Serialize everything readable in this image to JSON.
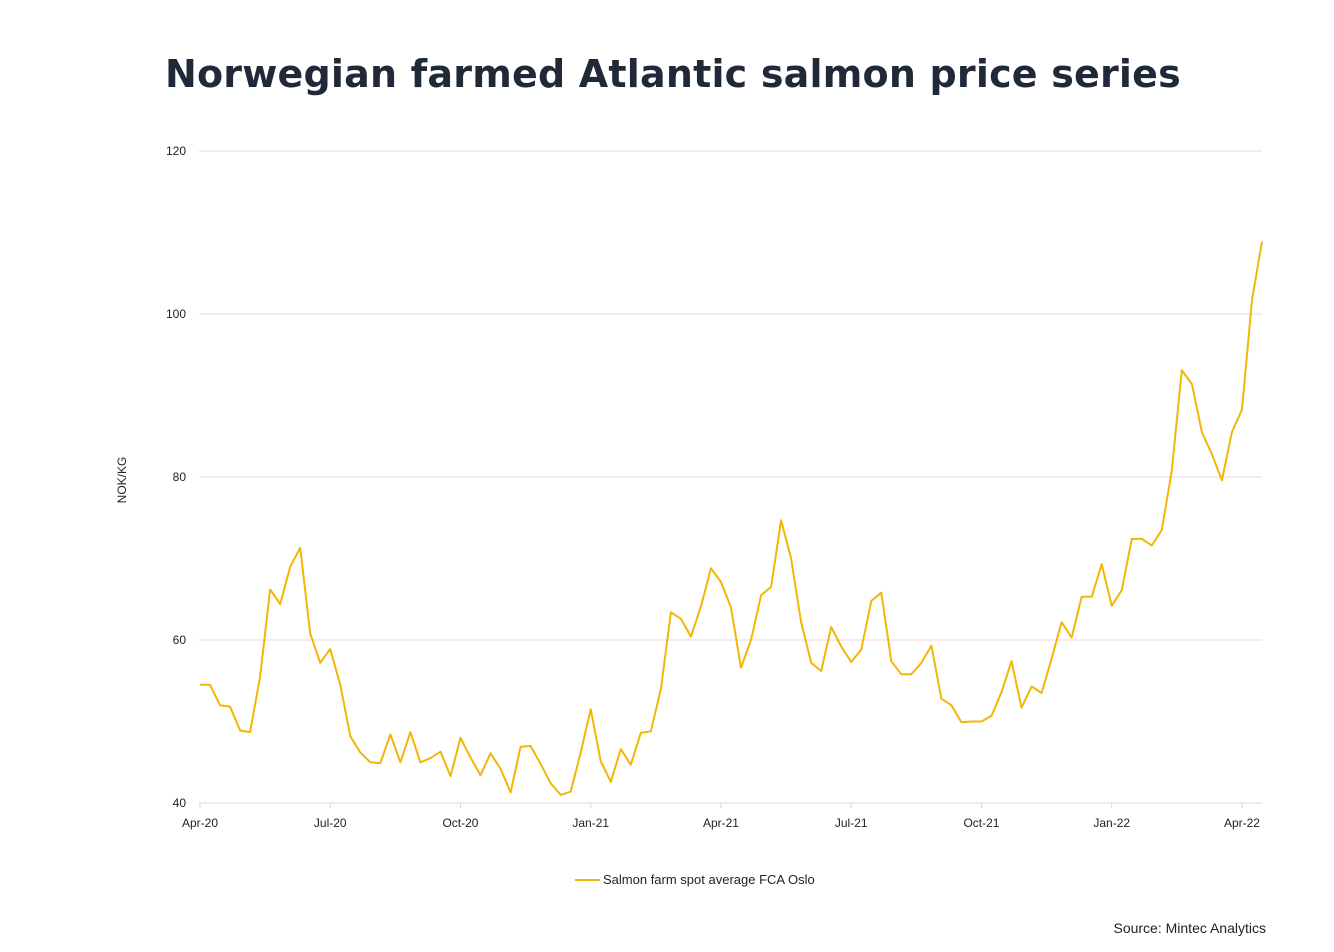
{
  "title": "Norwegian farmed Atlantic salmon price series",
  "source": "Source: Mintec Analytics",
  "chart_data": {
    "type": "line",
    "title": "Norwegian farmed Atlantic salmon price series",
    "xlabel": "",
    "ylabel": "NOK/KG",
    "ylim": [
      40,
      120
    ],
    "yticks": [
      40,
      60,
      80,
      100,
      120
    ],
    "x_ticks": [
      {
        "label": "Apr-20",
        "week": 0
      },
      {
        "label": "Jul-20",
        "week": 13
      },
      {
        "label": "Oct-20",
        "week": 26
      },
      {
        "label": "Jan-21",
        "week": 39
      },
      {
        "label": "Apr-21",
        "week": 52
      },
      {
        "label": "Jul-21",
        "week": 65
      },
      {
        "label": "Oct-21",
        "week": 78
      },
      {
        "label": "Jan-22",
        "week": 91
      },
      {
        "label": "Apr-22",
        "week": 104
      }
    ],
    "grid": true,
    "legend": "bottom-center",
    "colors": {
      "series": "#F2B705",
      "grid": "#f3d6dc",
      "axis": "#d9d9d9"
    },
    "series": [
      {
        "name": "Salmon farm spot average FCA Oslo",
        "values": [
          54.5,
          54.5,
          52.0,
          51.8,
          48.9,
          48.7,
          55.5,
          66.2,
          64.4,
          69.0,
          71.3,
          60.8,
          57.2,
          58.9,
          54.5,
          48.2,
          46.2,
          45.0,
          44.9,
          48.4,
          45.0,
          48.7,
          45.0,
          45.5,
          46.3,
          43.3,
          48.0,
          45.6,
          43.4,
          46.1,
          44.2,
          41.3,
          46.9,
          47.0,
          44.8,
          42.4,
          41.0,
          41.4,
          46.2,
          51.5,
          45.1,
          42.6,
          46.6,
          44.7,
          48.6,
          48.8,
          54.0,
          63.4,
          62.6,
          60.4,
          64.1,
          68.8,
          67.1,
          64.0,
          56.6,
          60.0,
          65.5,
          66.5,
          74.7,
          70.0,
          62.2,
          57.2,
          56.2,
          61.6,
          59.2,
          57.3,
          58.8,
          64.8,
          65.8,
          57.4,
          55.8,
          55.8,
          57.2,
          59.3,
          52.8,
          52.0,
          49.9,
          50.0,
          50.0,
          50.7,
          53.6,
          57.4,
          51.7,
          54.3,
          53.5,
          57.7,
          62.2,
          60.3,
          65.3,
          65.3,
          69.3,
          64.2,
          66.1,
          72.4,
          72.4,
          71.6,
          73.5,
          80.8,
          93.1,
          91.4,
          85.5,
          82.8,
          79.6,
          85.5,
          88.3,
          101.7,
          108.9
        ]
      }
    ]
  }
}
